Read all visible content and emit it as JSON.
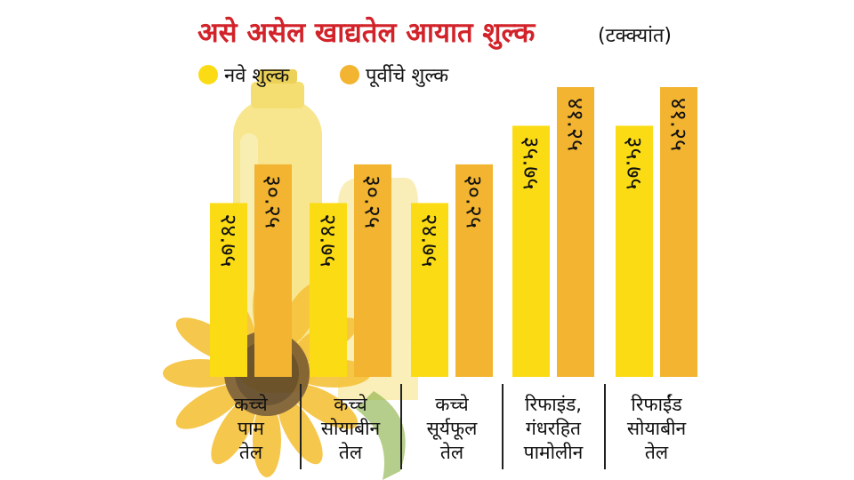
{
  "chart_data": {
    "type": "bar",
    "title": "असे असेल खाद्यतेल आयात शुल्क",
    "title_unit": "(टक्क्यांत)",
    "categories": [
      [
        "कच्चे",
        "पाम",
        "तेल"
      ],
      [
        "कच्चे",
        "सोयाबीन",
        "तेल"
      ],
      [
        "कच्चे",
        "सूर्यफूल",
        "तेल"
      ],
      [
        "रिफाइंड,",
        "गंधरहित",
        "पामोलीन"
      ],
      [
        "रिफाईंड",
        "सोयाबीन",
        "तेल"
      ]
    ],
    "series": [
      {
        "name": "नवे शुल्क",
        "values": [
          24.75,
          24.75,
          24.75,
          35.75,
          35.75
        ],
        "labels": [
          "२४.७५",
          "२४.७५",
          "२४.७५",
          "३५.७५",
          "३५.७५"
        ]
      },
      {
        "name": "पूर्वीचे शुल्क",
        "values": [
          30.25,
          30.25,
          30.25,
          41.25,
          41.25
        ],
        "labels": [
          "३०.२५",
          "३०.२५",
          "३०.२५",
          "४१.२५",
          "४१.२५"
        ]
      }
    ],
    "legend_position": "top-left",
    "grid": false,
    "ylim": [
      0,
      41.25
    ]
  },
  "colors": {
    "title": "#d2232a",
    "new_duty": "#fbdc14",
    "old_duty": "#f2b431",
    "text": "#111111",
    "divider": "#222222"
  }
}
